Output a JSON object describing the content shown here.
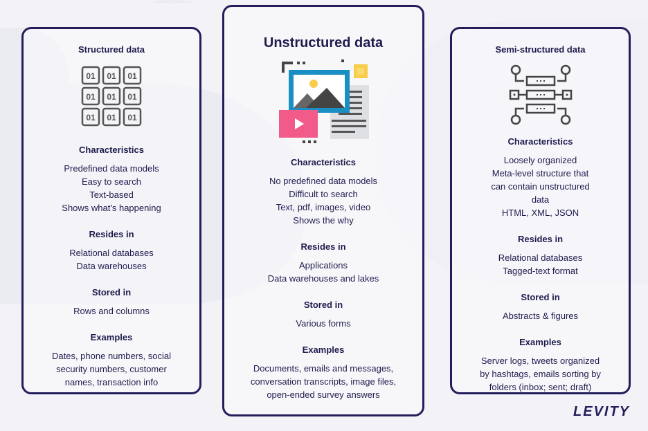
{
  "cards": [
    {
      "title": "Structured data",
      "icon": "binary-grid-icon",
      "sections": [
        {
          "heading": "Characteristics",
          "lines": [
            "Predefined data models",
            "Easy to search",
            "Text-based",
            "Shows what's happening"
          ]
        },
        {
          "heading": "Resides in",
          "lines": [
            "Relational databases",
            "Data warehouses"
          ]
        },
        {
          "heading": "Stored in",
          "lines": [
            "Rows and columns"
          ]
        },
        {
          "heading": "Examples",
          "lines": [
            "Dates, phone numbers, social",
            "security numbers, customer",
            "names, transaction info"
          ]
        }
      ]
    },
    {
      "title": "Unstructured data",
      "icon": "media-files-icon",
      "sections": [
        {
          "heading": "Characteristics",
          "lines": [
            "No predefined data models",
            "Difficult to search",
            "Text, pdf, images, video",
            "Shows the why"
          ]
        },
        {
          "heading": "Resides in",
          "lines": [
            "Applications",
            "Data warehouses and lakes"
          ]
        },
        {
          "heading": "Stored in",
          "lines": [
            "Various forms"
          ]
        },
        {
          "heading": "Examples",
          "lines": [
            "Documents, emails and messages,",
            "conversation transcripts, image files,",
            "open-ended survey answers"
          ]
        }
      ]
    },
    {
      "title": "Semi-structured data",
      "icon": "network-nodes-icon",
      "sections": [
        {
          "heading": "Characteristics",
          "lines": [
            "Loosely organized",
            "Meta-level structure that",
            "can contain unstructured",
            "data",
            "HTML, XML, JSON"
          ]
        },
        {
          "heading": "Resides in",
          "lines": [
            "Relational databases",
            "Tagged-text format"
          ]
        },
        {
          "heading": "Stored in",
          "lines": [
            "Abstracts  & figures"
          ]
        },
        {
          "heading": "Examples",
          "lines": [
            "Server logs, tweets organized",
            "by hashtags,  emails sorting by",
            "folders (inbox; sent; draft)"
          ]
        }
      ]
    }
  ],
  "logo": "LEVITY",
  "colors": {
    "border": "#231d5c",
    "text": "#1f1c4d",
    "icon_gray": "#555555",
    "blue": "#1a8fc4",
    "pink": "#f25a8a",
    "yellow": "#f7cd4a"
  }
}
